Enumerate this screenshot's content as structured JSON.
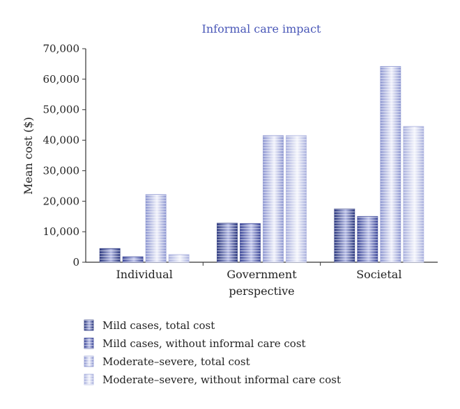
{
  "chart_data": {
    "type": "bar",
    "title": "Informal care impact",
    "title_color": "#4a58b8",
    "ylabel": "Mean cost ($)",
    "xlabel": "",
    "ylim": [
      0,
      70000
    ],
    "yticks": [
      0,
      10000,
      20000,
      30000,
      40000,
      50000,
      60000,
      70000
    ],
    "ytick_labels": [
      "0",
      "10,000",
      "20,000",
      "30,000",
      "40,000",
      "50,000",
      "60,000",
      "70,000"
    ],
    "categories": [
      [
        "Individual"
      ],
      [
        "Government",
        "perspective"
      ],
      [
        "Societal"
      ]
    ],
    "grid": false,
    "legend_position": "bottom-left",
    "series": [
      {
        "name": "Mild cases, total cost",
        "values": [
          4500,
          12800,
          17500
        ],
        "color_dark": "#2e3a80",
        "color_light": "#b7bde6"
      },
      {
        "name": "Mild cases, without informal care cost",
        "values": [
          1800,
          12700,
          15000
        ],
        "color_dark": "#3f4a9a",
        "color_light": "#c3c8ec"
      },
      {
        "name": "Moderate–severe, total cost",
        "values": [
          22200,
          41500,
          64200
        ],
        "color_dark": "#8f98d2",
        "color_light": "#f1f2fb"
      },
      {
        "name": "Moderate–severe, without informal care cost",
        "values": [
          2500,
          41500,
          44500
        ],
        "color_dark": "#aab1de",
        "color_light": "#f5f6fc"
      }
    ]
  }
}
